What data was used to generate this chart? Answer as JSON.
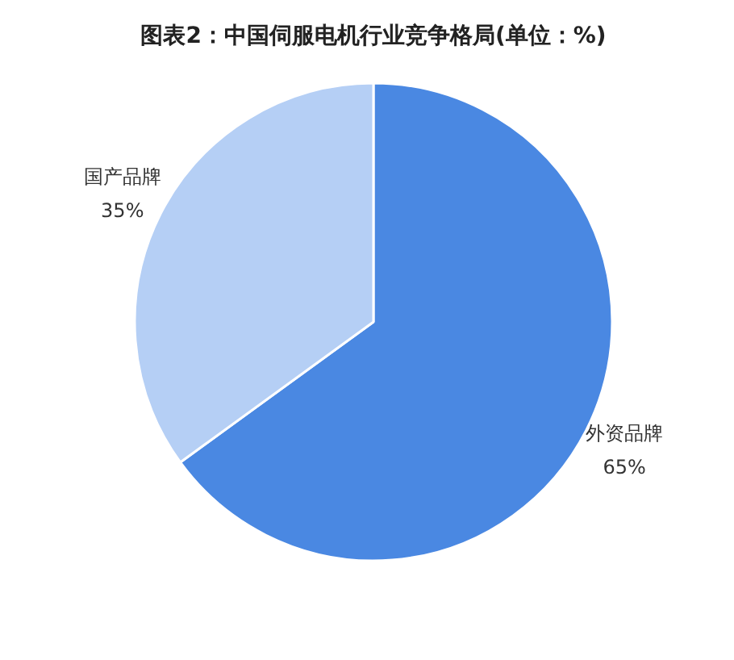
{
  "chart_data": {
    "type": "pie",
    "title": "图表2：中国伺服电机行业竞争格局(单位：%)",
    "categories": [
      "外资品牌",
      "国产品牌"
    ],
    "values": [
      65,
      35
    ],
    "value_labels": [
      "65%",
      "35%"
    ],
    "colors": [
      "#4a88e2",
      "#b5cff5"
    ]
  }
}
